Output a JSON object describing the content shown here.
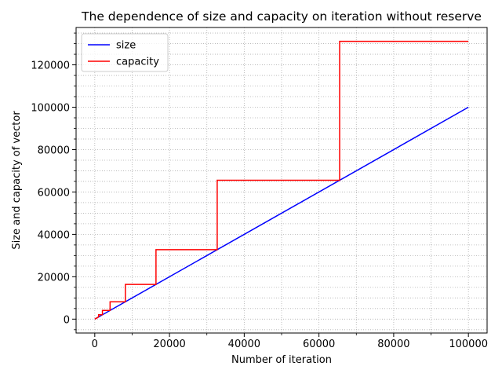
{
  "chart_data": {
    "type": "line",
    "title": "The dependence of size and capacity on iteration without reserve",
    "xlabel": "Number of iteration",
    "ylabel": "Size and capacity of vector",
    "xlim": [
      -5000,
      105000
    ],
    "ylim": [
      -6554,
      137626
    ],
    "x_ticks": [
      0,
      20000,
      40000,
      60000,
      80000,
      100000
    ],
    "x_tick_labels": [
      "0",
      "20000",
      "40000",
      "60000",
      "80000",
      "100000"
    ],
    "y_ticks": [
      0,
      20000,
      40000,
      60000,
      80000,
      100000,
      120000
    ],
    "y_tick_labels": [
      "0",
      "20000",
      "40000",
      "60000",
      "80000",
      "100000",
      "120000"
    ],
    "grid": true,
    "grid_style": "dotted",
    "legend_position": "upper left",
    "series": [
      {
        "name": "size",
        "color": "#0000ff",
        "kind": "line",
        "x": [
          0,
          100000
        ],
        "y": [
          0,
          100000
        ]
      },
      {
        "name": "capacity",
        "color": "#ff0000",
        "kind": "step",
        "x": [
          0,
          1024,
          1024,
          2048,
          2048,
          4096,
          4096,
          8192,
          8192,
          16384,
          16384,
          32768,
          32768,
          65536,
          65536,
          100000
        ],
        "y": [
          0,
          1024,
          2048,
          2048,
          4096,
          4096,
          8192,
          8192,
          16384,
          16384,
          32768,
          32768,
          65536,
          65536,
          131072,
          131072
        ]
      }
    ]
  }
}
